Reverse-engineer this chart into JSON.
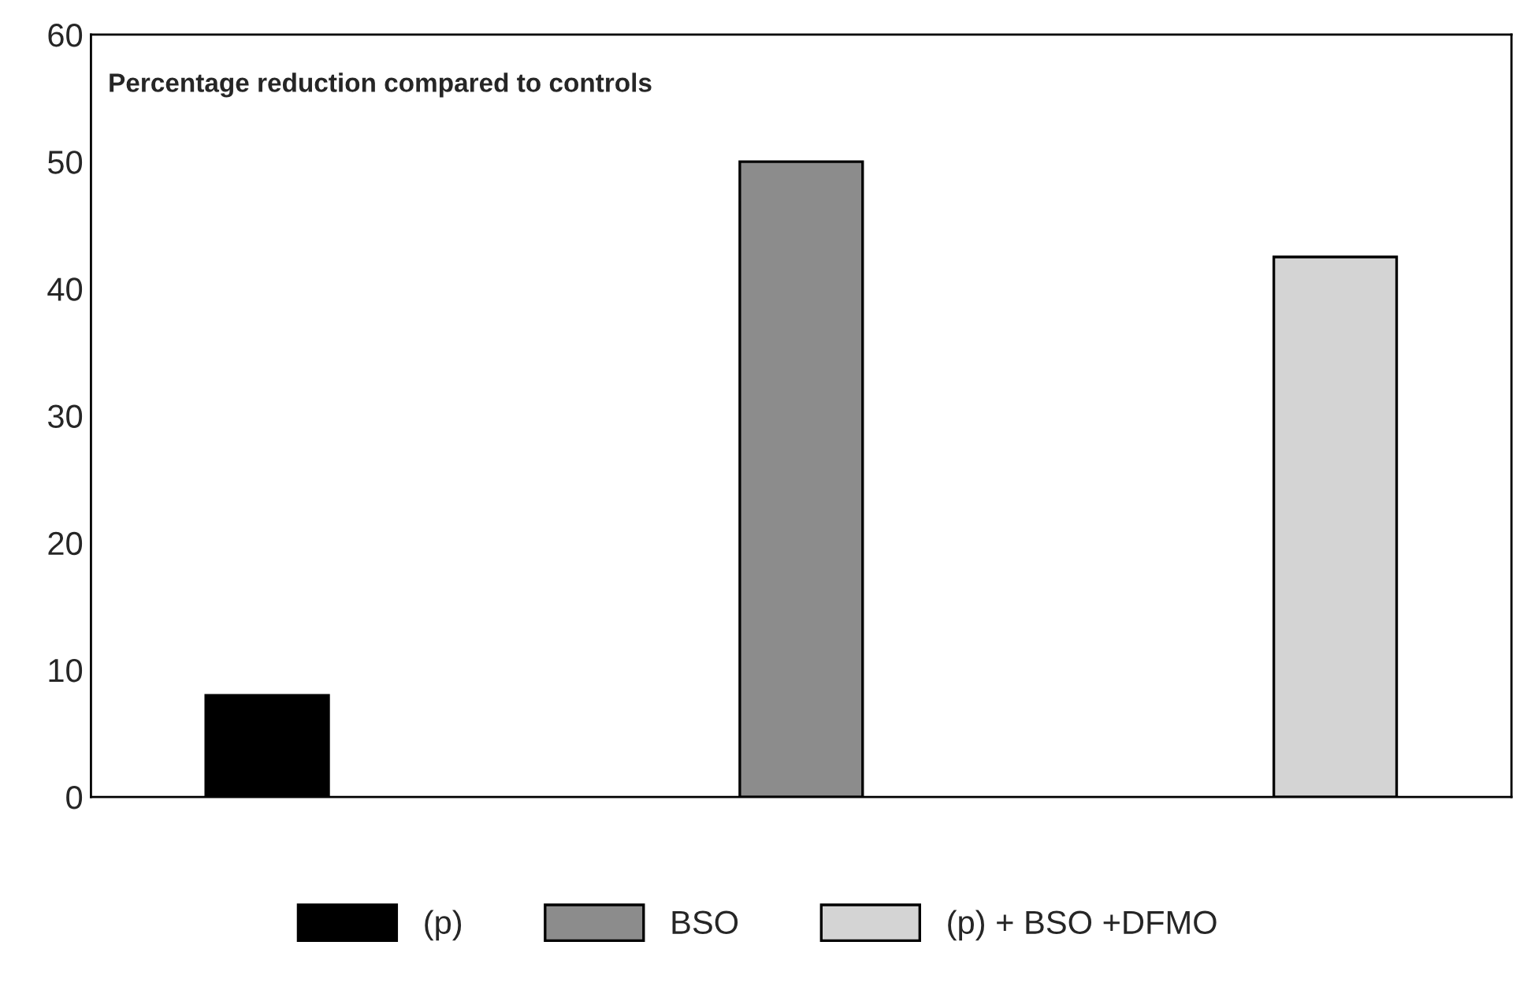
{
  "chart_data": {
    "type": "bar",
    "title": "Percentage reduction compared to controls",
    "categories": [
      null,
      null,
      null
    ],
    "series": [
      {
        "name": "(p)",
        "color": "#000000",
        "values": [
          8,
          null,
          null
        ]
      },
      {
        "name": "BSO",
        "color": "#8c8c8c",
        "values": [
          null,
          50,
          null
        ]
      },
      {
        "name": "(p) + BSO +DFMO",
        "color": "#d4d4d4",
        "values": [
          null,
          null,
          42.5
        ]
      }
    ],
    "ylim": [
      0,
      60
    ],
    "yticks": [
      0,
      10,
      20,
      30,
      40,
      50,
      60
    ],
    "grid": false,
    "legend": "bottom",
    "tick_labels": "y"
  }
}
